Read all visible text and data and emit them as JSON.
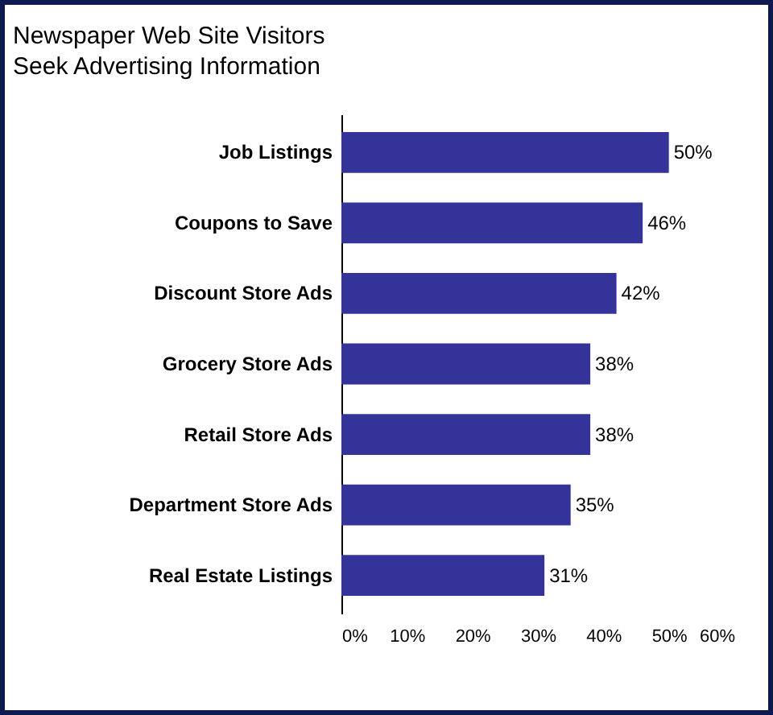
{
  "chart_data": {
    "type": "bar",
    "orientation": "horizontal",
    "title": "Newspaper Web Site Visitors\nSeek Advertising Information",
    "categories": [
      "Job Listings",
      "Coupons to Save",
      "Discount Store Ads",
      "Grocery Store Ads",
      "Retail Store Ads",
      "Department Store Ads",
      "Real Estate Listings"
    ],
    "values": [
      50,
      46,
      42,
      38,
      38,
      35,
      31
    ],
    "value_labels": [
      "50%",
      "46%",
      "42%",
      "38%",
      "38%",
      "35%",
      "31%"
    ],
    "color": "#333399",
    "xlim": [
      0,
      60
    ],
    "xticks": [
      {
        "value": 0,
        "label": "0%"
      },
      {
        "value": 10,
        "label": "10%"
      },
      {
        "value": 20,
        "label": "20%"
      },
      {
        "value": 30,
        "label": "30%"
      },
      {
        "value": 40,
        "label": "40%"
      },
      {
        "value": 50,
        "label": "50%"
      },
      {
        "value": 60,
        "label": "60%"
      }
    ],
    "grid": false
  }
}
